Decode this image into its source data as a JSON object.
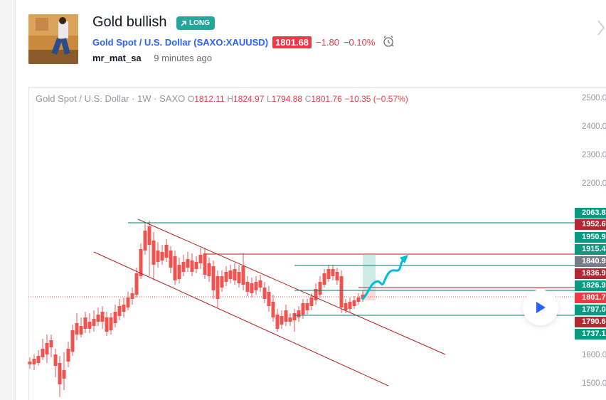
{
  "idea": {
    "title": "Gold bullish",
    "direction_label": "LONG",
    "symbol_name": "Gold Spot / U.S. Dollar",
    "symbol_code": "(SAXO:XAUUSD)",
    "price": "1801.68",
    "change": "−1.80",
    "change_pct": "−0.10%",
    "author": "mr_mat_sa",
    "published": "9 minutes ago"
  },
  "legend": {
    "instrument": "Gold Spot / U.S. Dollar · 1W · SAXO",
    "o_label": "O",
    "o_value": "1812.11",
    "h_label": "H",
    "h_value": "1824.97",
    "l_label": "L",
    "l_value": "1794.88",
    "c_label": "C",
    "c_value": "1801.76",
    "change": "−10.35 (−0.57%)"
  },
  "axis": {
    "ticks": [
      "2500.0",
      "2400.0",
      "2300.0",
      "2200.0",
      "1600.0",
      "1500.0"
    ]
  },
  "price_tags": [
    {
      "text": "2063.8",
      "color": "#089981"
    },
    {
      "text": "1952.6",
      "color": "#b22833"
    },
    {
      "text": "1950.9",
      "color": "#089981"
    },
    {
      "text": "1915.4",
      "color": "#089981"
    },
    {
      "text": "1840.9",
      "color": "#787b86"
    },
    {
      "text": "1836.9",
      "color": "#b22833"
    },
    {
      "text": "1826.9",
      "color": "#089981"
    },
    {
      "text": "1801.7",
      "color": "#f23645"
    },
    {
      "text": "1797.0",
      "color": "#089981"
    },
    {
      "text": "1790.6",
      "color": "#b22833"
    },
    {
      "text": "1737.1",
      "color": "#089981"
    }
  ],
  "colors": {
    "up": "#26a69a",
    "down": "#ef5350",
    "channel": "#b71c1c",
    "level": "#00796b",
    "projection": "#00bcd4"
  },
  "icons": [
    "trend-up-icon",
    "alarm-clock-icon",
    "chevron-right-icon",
    "play-icon"
  ]
}
